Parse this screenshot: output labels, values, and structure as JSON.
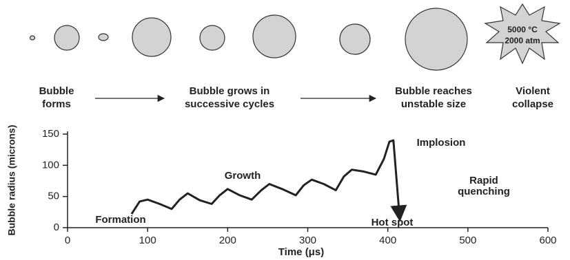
{
  "diagram": {
    "stages": [
      [
        "Bubble",
        "forms"
      ],
      [
        "Bubble grows in",
        "successive cycles"
      ],
      [
        "Bubble reaches",
        "unstable size"
      ],
      [
        "Violent",
        "collapse"
      ]
    ],
    "collapse_conditions": [
      "5000 °C",
      "2000 atm"
    ]
  },
  "chart_data": {
    "type": "line",
    "x_label": "Time (μs)",
    "y_label": "Bubble radius (microns)",
    "x": [
      80,
      90,
      100,
      115,
      130,
      140,
      150,
      165,
      180,
      190,
      200,
      215,
      230,
      242,
      252,
      268,
      285,
      295,
      305,
      320,
      335,
      345,
      355,
      370,
      385,
      395,
      402,
      407,
      412,
      415
    ],
    "values": [
      22,
      42,
      45,
      38,
      30,
      45,
      55,
      44,
      38,
      52,
      62,
      52,
      45,
      60,
      70,
      62,
      52,
      68,
      77,
      70,
      60,
      82,
      93,
      90,
      85,
      110,
      138,
      140,
      60,
      12
    ],
    "color": "#222222",
    "xlim": [
      0,
      600
    ],
    "xticks": [
      0,
      100,
      200,
      300,
      400,
      500,
      600
    ],
    "ylim": [
      0,
      150
    ],
    "yticks": [
      0,
      50,
      100,
      150
    ],
    "grid": false,
    "annotations": [
      [
        "Formation"
      ],
      [
        "Growth"
      ],
      [
        "Implosion"
      ],
      [
        "Rapid",
        "quenching"
      ],
      [
        "Hot spot"
      ]
    ]
  }
}
